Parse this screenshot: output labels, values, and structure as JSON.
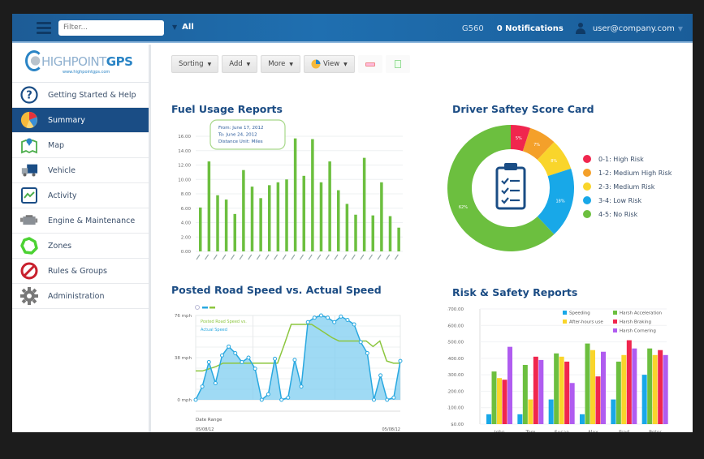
{
  "topbar": {
    "filter_placeholder": "Filter...",
    "scope_label": "All",
    "device": "G560",
    "notifications": "0 Notifications",
    "user_email": "user@company.com"
  },
  "logo": {
    "name_light": "HIGHPOINT",
    "name_bold": "GPS",
    "url": "www.highpointgps.com"
  },
  "sidebar": {
    "items": [
      {
        "label": "Getting Started & Help",
        "icon": "help-icon",
        "active": false
      },
      {
        "label": "Summary",
        "icon": "pie-chart-icon",
        "active": true
      },
      {
        "label": "Map",
        "icon": "map-icon",
        "active": false
      },
      {
        "label": "Vehicle",
        "icon": "truck-icon",
        "active": false
      },
      {
        "label": "Activity",
        "icon": "activity-icon",
        "active": false
      },
      {
        "label": "Engine & Maintenance",
        "icon": "engine-icon",
        "active": false
      },
      {
        "label": "Zones",
        "icon": "zones-icon",
        "active": false
      },
      {
        "label": "Rules & Groups",
        "icon": "prohibited-icon",
        "active": false
      },
      {
        "label": "Administration",
        "icon": "gear-icon",
        "active": false
      }
    ]
  },
  "toolbar": {
    "sorting": "Sorting",
    "add": "Add",
    "more": "More",
    "view": "View"
  },
  "panels": {
    "fuel_title": "Fuel Usage Reports",
    "fuel_tooltip": [
      "From: June 17, 2012",
      "To: June 24, 2012",
      "Distance Unit: Miles"
    ],
    "safety_title": "Driver Saftey Score Card",
    "speed_title": "Posted Road Speed vs. Actual Speed",
    "risk_title": "Risk & Safety Reports"
  },
  "chart_data": [
    {
      "type": "bar",
      "title": "Fuel Usage Reports",
      "xlabel": "",
      "ylabel": "",
      "ylim": [
        0,
        16
      ],
      "yticks": [
        "0.00",
        "2.00",
        "4.00",
        "6.00",
        "8.00",
        "10.00",
        "12.00",
        "14.00",
        "16.00"
      ],
      "grid": true,
      "color": "#6cbf3f",
      "values": [
        6.1,
        12.5,
        7.8,
        7.2,
        5.2,
        11.3,
        9.0,
        7.4,
        9.2,
        9.6,
        10.0,
        15.7,
        10.5,
        15.6,
        9.6,
        12.5,
        8.5,
        6.6,
        5.1,
        13.0,
        5.0,
        9.6,
        4.9,
        3.3
      ],
      "annotation": "From: June 17, 2012 / To: June 24, 2012 / Distance Unit: Miles"
    },
    {
      "type": "pie",
      "title": "Driver Saftey Score Card",
      "donut": true,
      "legend_position": "right",
      "slices": [
        {
          "label": "0-1: High Risk",
          "value": 5,
          "color": "#f0264e"
        },
        {
          "label": "1-2: Medium High Risk",
          "value": 7,
          "color": "#f4a02a"
        },
        {
          "label": "2-3: Medium Risk",
          "value": 8,
          "color": "#f9d52b"
        },
        {
          "label": "3-4: Low Risk",
          "value": 18,
          "color": "#18a8e8"
        },
        {
          "label": "4-5: No Risk",
          "value": 62,
          "color": "#6cbf3f"
        }
      ]
    },
    {
      "type": "area",
      "title": "Posted Road Speed vs. Actual Speed",
      "xlabel": "Date Range",
      "x_start": "05/08/12",
      "x_end": "05/08/12",
      "yticks": [
        "0 mph",
        "38 mph",
        "76 mph"
      ],
      "ylim": [
        0,
        76
      ],
      "legend": [
        "Posted Road Speed vs.",
        "Actual Speed"
      ],
      "series": [
        {
          "name": "Posted Road Speed",
          "color": "#8cc63f",
          "values": [
            26,
            26,
            28,
            30,
            33,
            33,
            33,
            33,
            33,
            33,
            33,
            33,
            33,
            50,
            68,
            68,
            68,
            68,
            64,
            60,
            56,
            53,
            53,
            53,
            53,
            53,
            48,
            53,
            35,
            33,
            33
          ]
        },
        {
          "name": "Actual Speed",
          "color": "#29a8e0",
          "values": [
            0,
            12,
            34,
            15,
            40,
            48,
            42,
            34,
            38,
            28,
            0,
            5,
            37,
            0,
            2,
            36,
            12,
            70,
            74,
            76,
            74,
            70,
            75,
            72,
            68,
            52,
            42,
            0,
            22,
            0,
            2,
            35
          ]
        }
      ]
    },
    {
      "type": "bar",
      "title": "Risk & Safety Reports",
      "categories": [
        "John",
        "Tom",
        "Susan",
        "Alex",
        "Fred",
        "Peter"
      ],
      "yticks": [
        "$0.00",
        "$100.00",
        "$200.00",
        "$300.00",
        "$400.00",
        "$500.00",
        "$600.00",
        "$700.00"
      ],
      "ylim": [
        0,
        700
      ],
      "legend_position": "top-right",
      "series": [
        {
          "name": "Speeding",
          "color": "#18a8e8",
          "values": [
            60,
            60,
            150,
            60,
            150,
            300
          ]
        },
        {
          "name": "Harsh Acceleration",
          "color": "#6cbf3f",
          "values": [
            320,
            360,
            430,
            490,
            380,
            460
          ]
        },
        {
          "name": "After-hours use",
          "color": "#f9d52b",
          "values": [
            280,
            150,
            410,
            450,
            420,
            420
          ]
        },
        {
          "name": "Harsh Braking",
          "color": "#f0264e",
          "values": [
            270,
            410,
            380,
            290,
            510,
            450
          ]
        },
        {
          "name": "Harsh Cornering",
          "color": "#b05cf0",
          "values": [
            470,
            390,
            250,
            440,
            460,
            420
          ]
        }
      ]
    }
  ]
}
